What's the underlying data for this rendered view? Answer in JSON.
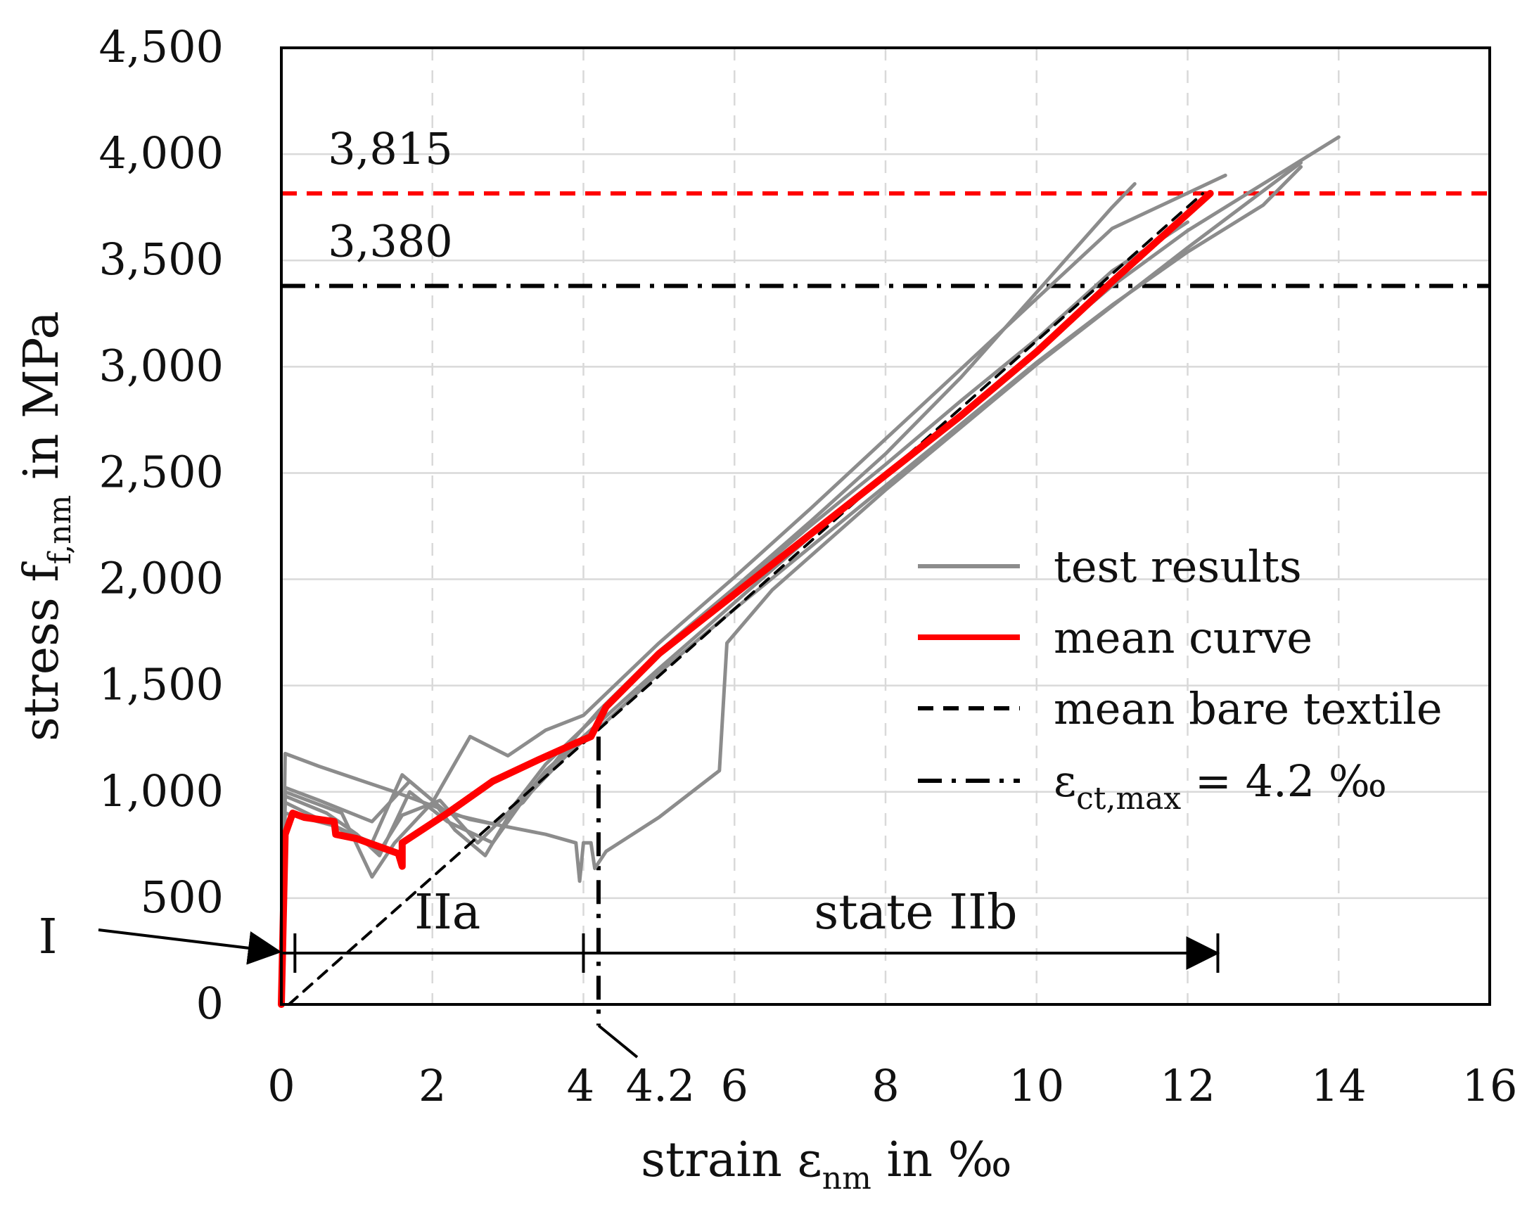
{
  "chart_data": {
    "type": "line",
    "xlabel": "strain ε",
    "xlabel_sub": "nm",
    "xlabel_tail": " in ‰",
    "ylabel": "stress f",
    "ylabel_sub": "f,nm",
    "ylabel_tail": " in MPa",
    "xlim": [
      0,
      16
    ],
    "ylim": [
      0,
      4500
    ],
    "grid": true,
    "x_ticks": [
      {
        "value": 0,
        "label": "0"
      },
      {
        "value": 2,
        "label": "2"
      },
      {
        "value": 4,
        "label": "4"
      },
      {
        "value": 4.2,
        "label": "4.2"
      },
      {
        "value": 6,
        "label": "6"
      },
      {
        "value": 8,
        "label": "8"
      },
      {
        "value": 10,
        "label": "10"
      },
      {
        "value": 12,
        "label": "12"
      },
      {
        "value": 14,
        "label": "14"
      },
      {
        "value": 16,
        "label": "16"
      }
    ],
    "y_ticks": [
      {
        "value": 0,
        "label": "0"
      },
      {
        "value": 500,
        "label": "500"
      },
      {
        "value": 1000,
        "label": "1,000"
      },
      {
        "value": 1500,
        "label": "1,500"
      },
      {
        "value": 2000,
        "label": "2,000"
      },
      {
        "value": 2500,
        "label": "2,500"
      },
      {
        "value": 3000,
        "label": "3,000"
      },
      {
        "value": 3500,
        "label": "3,500"
      },
      {
        "value": 4000,
        "label": "4,000"
      },
      {
        "value": 4500,
        "label": "4,500"
      }
    ],
    "legend": {
      "position": "center-right",
      "entries": [
        {
          "key": "test",
          "label": "test results",
          "color": "#8c8c8c",
          "style": "solid"
        },
        {
          "key": "mean",
          "label": "mean curve",
          "color": "#ff0000",
          "style": "solid"
        },
        {
          "key": "bare",
          "label": "mean bare textile",
          "color": "#000000",
          "style": "dashed"
        },
        {
          "key": "ect",
          "label_main": "ε",
          "label_sub": "ct,max",
          "label_tail": " = 4.2 ‰",
          "color": "#000000",
          "style": "dash-dot"
        }
      ]
    },
    "reference_lines": [
      {
        "key": "mean_strength",
        "value": 3815,
        "label": "3,815",
        "color": "#ff0000",
        "style": "dashed",
        "orientation": "horizontal"
      },
      {
        "key": "bare_strength",
        "value": 3380,
        "label": "3,380",
        "color": "#000000",
        "style": "dash-dot",
        "orientation": "horizontal"
      },
      {
        "key": "eps_ct_max",
        "value": 4.2,
        "color": "#000000",
        "style": "dash-dot",
        "orientation": "vertical"
      }
    ],
    "series": [
      {
        "name": "mean curve",
        "color": "#ff0000",
        "points": [
          [
            0,
            0
          ],
          [
            0.05,
            800
          ],
          [
            0.15,
            900
          ],
          [
            0.3,
            880
          ],
          [
            0.7,
            860
          ],
          [
            0.72,
            800
          ],
          [
            1.0,
            780
          ],
          [
            1.55,
            710
          ],
          [
            1.6,
            650
          ],
          [
            1.6,
            760
          ],
          [
            2.2,
            900
          ],
          [
            2.8,
            1050
          ],
          [
            3.4,
            1150
          ],
          [
            3.9,
            1230
          ],
          [
            4.1,
            1260
          ],
          [
            4.3,
            1400
          ],
          [
            5,
            1650
          ],
          [
            6,
            1930
          ],
          [
            7,
            2210
          ],
          [
            8,
            2490
          ],
          [
            9,
            2770
          ],
          [
            10,
            3070
          ],
          [
            11,
            3400
          ],
          [
            12.3,
            3815
          ]
        ]
      },
      {
        "name": "mean bare textile",
        "color": "#000000",
        "points": [
          [
            0.1,
            0
          ],
          [
            12.2,
            3815
          ]
        ]
      },
      {
        "name": "test results 1",
        "color": "#8c8c8c",
        "points": [
          [
            0,
            0
          ],
          [
            0.05,
            1180
          ],
          [
            0.5,
            1120
          ],
          [
            1.5,
            1000
          ],
          [
            2.5,
            870
          ],
          [
            3.5,
            800
          ],
          [
            3.9,
            760
          ],
          [
            3.95,
            580
          ],
          [
            4.0,
            760
          ],
          [
            4.1,
            760
          ],
          [
            4.15,
            640
          ],
          [
            4.3,
            720
          ],
          [
            5.0,
            880
          ],
          [
            5.8,
            1100
          ],
          [
            5.9,
            1700
          ],
          [
            6.5,
            1950
          ],
          [
            8,
            2420
          ],
          [
            10,
            3010
          ],
          [
            12,
            3560
          ],
          [
            13.5,
            3960
          ]
        ]
      },
      {
        "name": "test results 2",
        "color": "#8c8c8c",
        "points": [
          [
            0,
            0
          ],
          [
            0.05,
            1020
          ],
          [
            0.5,
            960
          ],
          [
            1.2,
            860
          ],
          [
            1.7,
            1050
          ],
          [
            2.2,
            900
          ],
          [
            2.8,
            850
          ],
          [
            3.2,
            950
          ],
          [
            3.8,
            1220
          ],
          [
            4.2,
            1380
          ],
          [
            5,
            1660
          ],
          [
            6,
            1960
          ],
          [
            7,
            2270
          ],
          [
            8,
            2590
          ],
          [
            9,
            2950
          ],
          [
            10,
            3350
          ],
          [
            11,
            3750
          ],
          [
            11.3,
            3860
          ]
        ]
      },
      {
        "name": "test results 3",
        "color": "#8c8c8c",
        "points": [
          [
            0,
            0
          ],
          [
            0.05,
            1000
          ],
          [
            0.8,
            900
          ],
          [
            1.2,
            600
          ],
          [
            1.5,
            760
          ],
          [
            2.0,
            950
          ],
          [
            2.5,
            1260
          ],
          [
            3.0,
            1170
          ],
          [
            3.5,
            1290
          ],
          [
            4.0,
            1360
          ],
          [
            5,
            1700
          ],
          [
            6,
            2010
          ],
          [
            7,
            2330
          ],
          [
            8,
            2660
          ],
          [
            9,
            2990
          ],
          [
            10,
            3320
          ],
          [
            11,
            3650
          ],
          [
            12.5,
            3900
          ]
        ]
      },
      {
        "name": "test results 4",
        "color": "#8c8c8c",
        "points": [
          [
            0,
            0
          ],
          [
            0.05,
            950
          ],
          [
            0.8,
            820
          ],
          [
            1.3,
            720
          ],
          [
            1.6,
            890
          ],
          [
            2.1,
            960
          ],
          [
            2.6,
            760
          ],
          [
            3.0,
            900
          ],
          [
            3.5,
            1130
          ],
          [
            4.0,
            1300
          ],
          [
            5,
            1640
          ],
          [
            6,
            1950
          ],
          [
            7,
            2250
          ],
          [
            8,
            2540
          ],
          [
            9,
            2840
          ],
          [
            10,
            3130
          ],
          [
            11,
            3450
          ],
          [
            12,
            3680
          ]
        ]
      },
      {
        "name": "test results 5",
        "color": "#8c8c8c",
        "points": [
          [
            0,
            0
          ],
          [
            0.05,
            900
          ],
          [
            0.7,
            840
          ],
          [
            1.2,
            760
          ],
          [
            1.6,
            1080
          ],
          [
            2.0,
            960
          ],
          [
            2.3,
            820
          ],
          [
            2.7,
            700
          ],
          [
            3.0,
            880
          ],
          [
            3.5,
            1100
          ],
          [
            4.0,
            1260
          ],
          [
            5,
            1580
          ],
          [
            6,
            1890
          ],
          [
            7,
            2200
          ],
          [
            8,
            2500
          ],
          [
            9,
            2780
          ],
          [
            10,
            3080
          ],
          [
            11,
            3380
          ],
          [
            12,
            3640
          ],
          [
            13,
            3860
          ],
          [
            14,
            4080
          ]
        ]
      },
      {
        "name": "test results 6",
        "color": "#8c8c8c",
        "points": [
          [
            0,
            0
          ],
          [
            0.05,
            980
          ],
          [
            0.6,
            900
          ],
          [
            1.0,
            800
          ],
          [
            1.3,
            700
          ],
          [
            1.7,
            1000
          ],
          [
            2.2,
            860
          ],
          [
            2.8,
            760
          ],
          [
            3.2,
            960
          ],
          [
            3.8,
            1180
          ],
          [
            4.3,
            1330
          ],
          [
            5,
            1560
          ],
          [
            6,
            1860
          ],
          [
            7,
            2150
          ],
          [
            8,
            2440
          ],
          [
            9,
            2730
          ],
          [
            10,
            3020
          ],
          [
            11,
            3290
          ],
          [
            12,
            3540
          ],
          [
            13,
            3760
          ],
          [
            13.5,
            3940
          ]
        ]
      }
    ],
    "annotations": [
      {
        "key": "state_I",
        "text": "I"
      },
      {
        "key": "state_IIa",
        "text": "IIa"
      },
      {
        "key": "state_IIb",
        "text": "state IIb"
      }
    ],
    "state_ranges": {
      "I": [
        0,
        0.18
      ],
      "IIa": [
        0.18,
        4.0
      ],
      "IIb": [
        4.0,
        12.4
      ]
    }
  }
}
